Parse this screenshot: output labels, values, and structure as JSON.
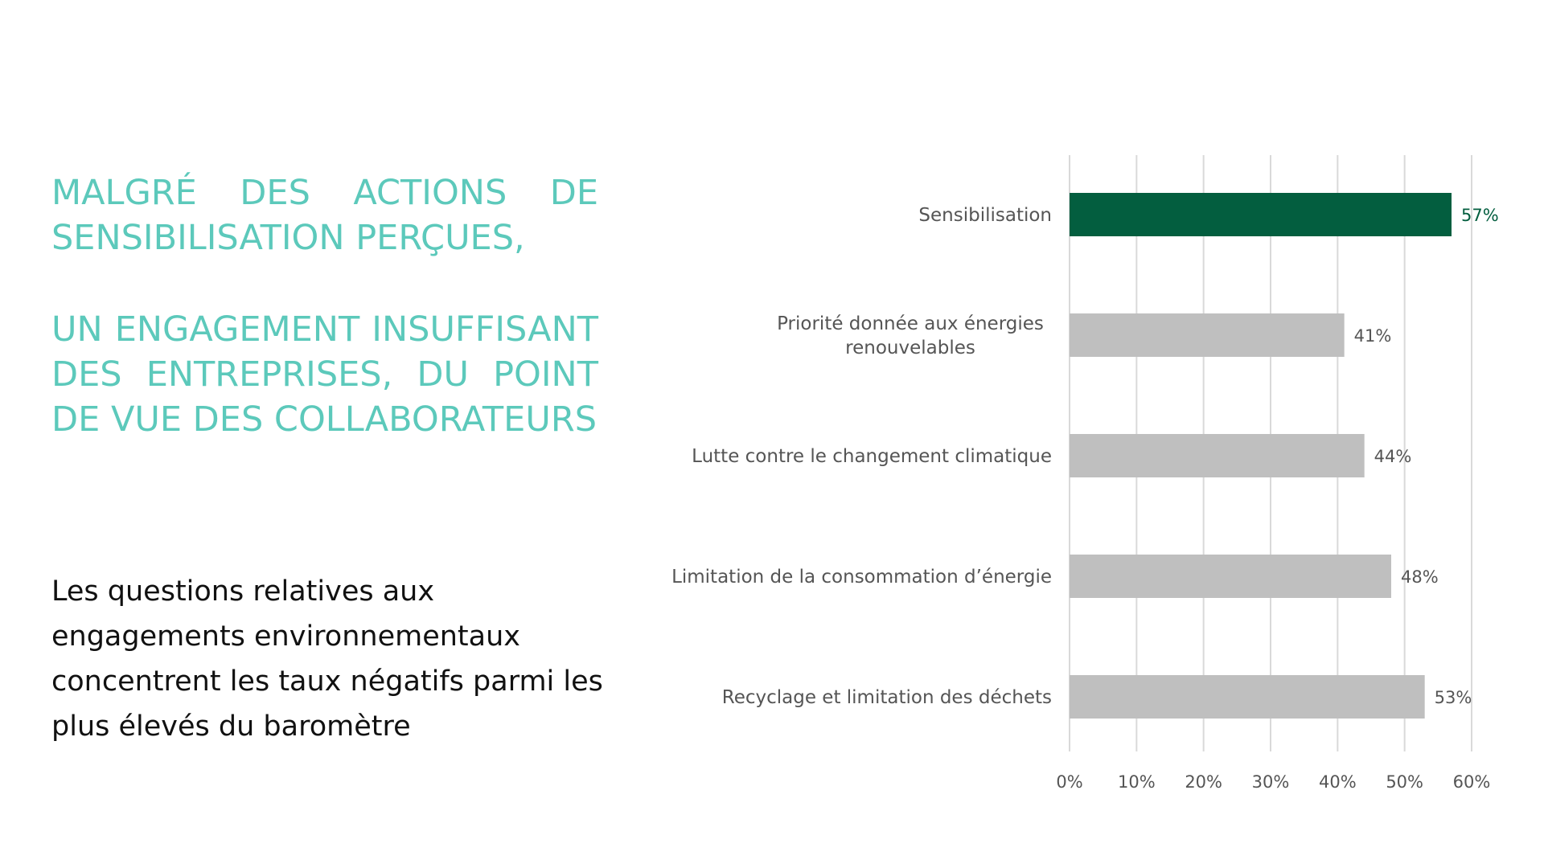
{
  "heading": {
    "line1": "MALGRÉ DES ACTIONS DE SENSIBILISATION PERÇUES,",
    "line2": "UN ENGAGEMENT INSUFFISANT DES ENTREPRISES, DU POINT DE VUE DES COLLABORATEURS"
  },
  "body": {
    "text": "Les questions relatives aux engagements environnementaux concentrent les taux négatifs parmi les plus élevés du baromètre"
  },
  "chart_data": {
    "type": "bar",
    "orientation": "horizontal",
    "categories": [
      [
        "Sensibilisation"
      ],
      [
        "Priorité donnée aux énergies",
        "renouvelables"
      ],
      [
        "Lutte contre le changement climatique"
      ],
      [
        "Limitation de la consommation d’énergie"
      ],
      [
        "Recyclage et limitation des déchets"
      ]
    ],
    "values": [
      57,
      41,
      44,
      48,
      53
    ],
    "value_labels": [
      "57%",
      "41%",
      "44%",
      "48%",
      "53%"
    ],
    "xlim": [
      0,
      60
    ],
    "xticks": [
      "0%",
      "10%",
      "20%",
      "30%",
      "40%",
      "50%",
      "60%"
    ],
    "grid": "vertical",
    "colors": {
      "highlight": "#035e3f",
      "default": "#bfbfbf",
      "gridline": "#d9d9d9",
      "highlight_label": "#035e3f",
      "label": "#555555"
    },
    "highlight_index": 0
  }
}
